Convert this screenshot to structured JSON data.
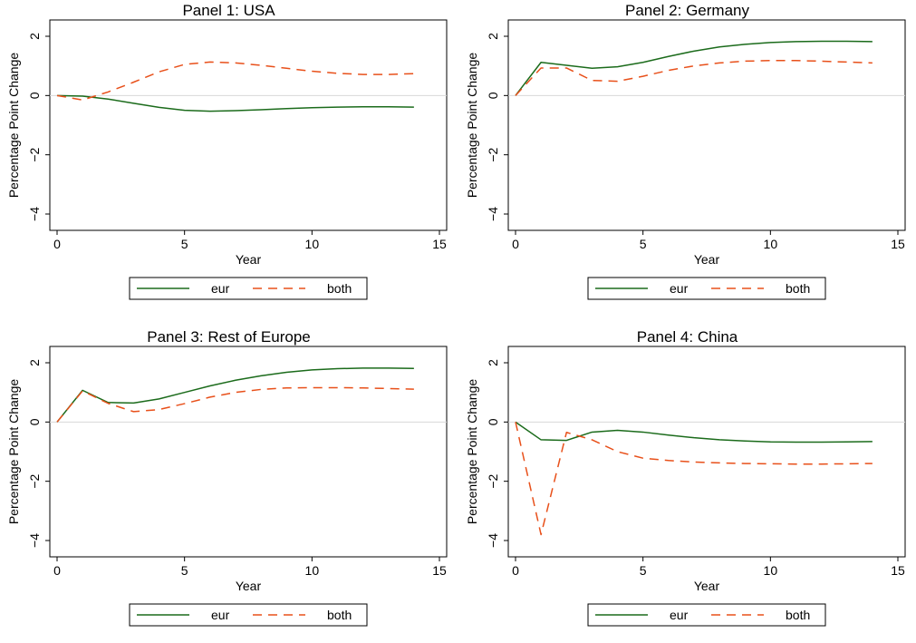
{
  "chart_data": [
    {
      "type": "line",
      "title": "Panel 1: USA",
      "xlabel": "Year",
      "ylabel": "Percentage Point Change",
      "xlim": [
        0,
        15
      ],
      "ylim": [
        -4,
        2
      ],
      "xticks": [
        "0",
        "5",
        "10",
        "15"
      ],
      "yticks": [
        "-4",
        "-2",
        "0",
        "2"
      ],
      "x": [
        0,
        1,
        2,
        3,
        4,
        5,
        6,
        7,
        8,
        9,
        10,
        11,
        12,
        13,
        14
      ],
      "series": [
        {
          "name": "eur",
          "values": [
            0,
            -0.02,
            -0.12,
            -0.26,
            -0.4,
            -0.5,
            -0.53,
            -0.51,
            -0.48,
            -0.44,
            -0.41,
            -0.39,
            -0.38,
            -0.38,
            -0.39
          ]
        },
        {
          "name": "both",
          "values": [
            0,
            -0.15,
            0.12,
            0.45,
            0.8,
            1.05,
            1.13,
            1.1,
            1.02,
            0.92,
            0.82,
            0.75,
            0.71,
            0.71,
            0.74
          ]
        }
      ]
    },
    {
      "type": "line",
      "title": "Panel 2: Germany",
      "xlabel": "Year",
      "ylabel": "Percentage Point Change",
      "xlim": [
        0,
        15
      ],
      "ylim": [
        -4,
        2
      ],
      "xticks": [
        "0",
        "5",
        "10",
        "15"
      ],
      "yticks": [
        "-4",
        "-2",
        "0",
        "2"
      ],
      "x": [
        0,
        1,
        2,
        3,
        4,
        5,
        6,
        7,
        8,
        9,
        10,
        11,
        12,
        13,
        14
      ],
      "series": [
        {
          "name": "eur",
          "values": [
            0,
            1.12,
            1.02,
            0.92,
            0.97,
            1.12,
            1.32,
            1.5,
            1.64,
            1.73,
            1.79,
            1.82,
            1.83,
            1.83,
            1.82
          ]
        },
        {
          "name": "both",
          "values": [
            0,
            0.93,
            0.93,
            0.51,
            0.48,
            0.65,
            0.85,
            1.0,
            1.1,
            1.16,
            1.18,
            1.18,
            1.16,
            1.13,
            1.1
          ]
        }
      ]
    },
    {
      "type": "line",
      "title": "Panel 3: Rest of Europe",
      "xlabel": "Year",
      "ylabel": "Percentage Point Change",
      "xlim": [
        0,
        15
      ],
      "ylim": [
        -4,
        2
      ],
      "xticks": [
        "0",
        "5",
        "10",
        "15"
      ],
      "yticks": [
        "-4",
        "-2",
        "0",
        "2"
      ],
      "x": [
        0,
        1,
        2,
        3,
        4,
        5,
        6,
        7,
        8,
        9,
        10,
        11,
        12,
        13,
        14
      ],
      "series": [
        {
          "name": "eur",
          "values": [
            0,
            1.07,
            0.66,
            0.64,
            0.78,
            1.0,
            1.22,
            1.41,
            1.56,
            1.68,
            1.76,
            1.8,
            1.82,
            1.82,
            1.81
          ]
        },
        {
          "name": "both",
          "values": [
            0,
            1.05,
            0.63,
            0.35,
            0.42,
            0.62,
            0.84,
            1.0,
            1.1,
            1.15,
            1.16,
            1.16,
            1.15,
            1.13,
            1.11
          ]
        }
      ]
    },
    {
      "type": "line",
      "title": "Panel 4: China",
      "xlabel": "Year",
      "ylabel": "Percentage Point Change",
      "xlim": [
        0,
        15
      ],
      "ylim": [
        -4,
        2
      ],
      "xticks": [
        "0",
        "5",
        "10",
        "15"
      ],
      "yticks": [
        "-4",
        "-2",
        "0",
        "2"
      ],
      "x": [
        0,
        1,
        2,
        3,
        4,
        5,
        6,
        7,
        8,
        9,
        10,
        11,
        12,
        13,
        14
      ],
      "series": [
        {
          "name": "eur",
          "values": [
            0,
            -0.6,
            -0.62,
            -0.34,
            -0.28,
            -0.34,
            -0.44,
            -0.53,
            -0.6,
            -0.64,
            -0.67,
            -0.68,
            -0.68,
            -0.67,
            -0.66
          ]
        },
        {
          "name": "both",
          "values": [
            0,
            -3.8,
            -0.35,
            -0.6,
            -1.0,
            -1.22,
            -1.3,
            -1.35,
            -1.38,
            -1.4,
            -1.41,
            -1.42,
            -1.42,
            -1.41,
            -1.4
          ]
        }
      ]
    }
  ],
  "colors": {
    "eur": "#1b6b1b",
    "both": "#e8501a",
    "zero_line": "#d8d8d8"
  }
}
